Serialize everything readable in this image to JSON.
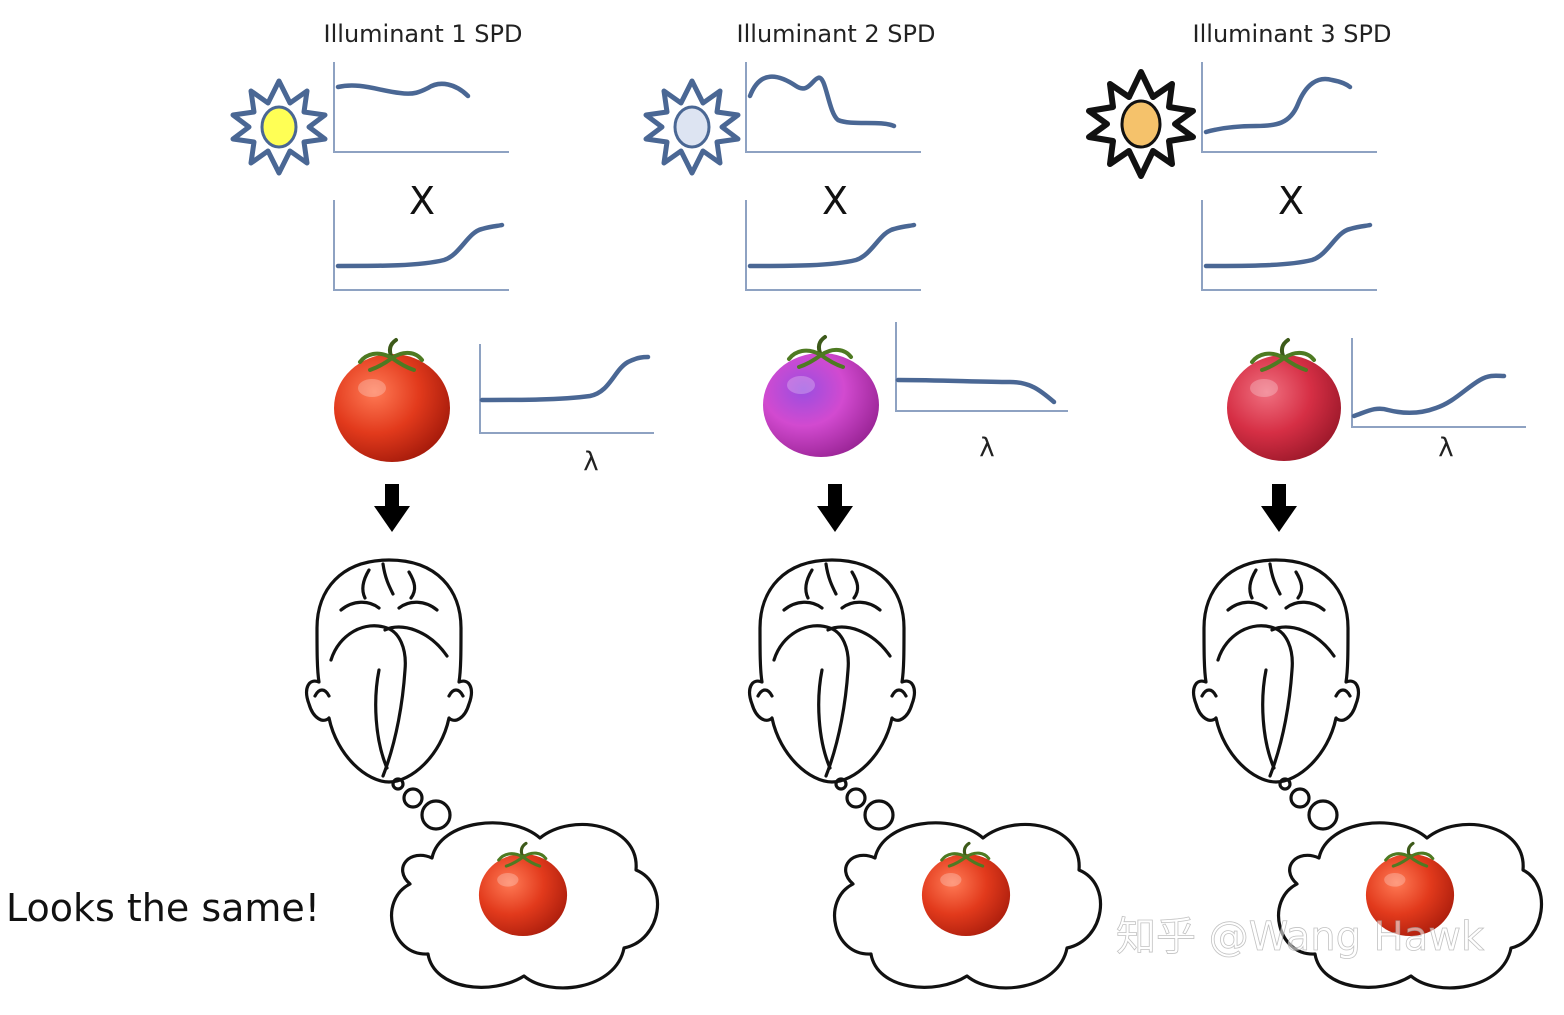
{
  "panels": [
    {
      "title": "Illuminant 1 SPD",
      "sun": {
        "fill": "#ffff55",
        "stroke": "#4a6794"
      },
      "operator": "X",
      "tomato_color": "#e23a1c",
      "lambda_label": "λ"
    },
    {
      "title": "Illuminant 2 SPD",
      "sun": {
        "fill": "#dde4f2",
        "stroke": "#4a6794"
      },
      "operator": "X",
      "tomato_color": "#c640c8",
      "lambda_label": "λ"
    },
    {
      "title": "Illuminant 3 SPD",
      "sun": {
        "fill": "#f5c26b",
        "stroke": "#111111"
      },
      "operator": "X",
      "tomato_color": "#d62f45",
      "lambda_label": "λ"
    }
  ],
  "caption": "Looks the same!",
  "watermark": "知乎 @Wang Hawk",
  "colors": {
    "curve": "#4a6794",
    "axis": "#8ea2c2",
    "perceived_tomato": "#e23a1c"
  }
}
